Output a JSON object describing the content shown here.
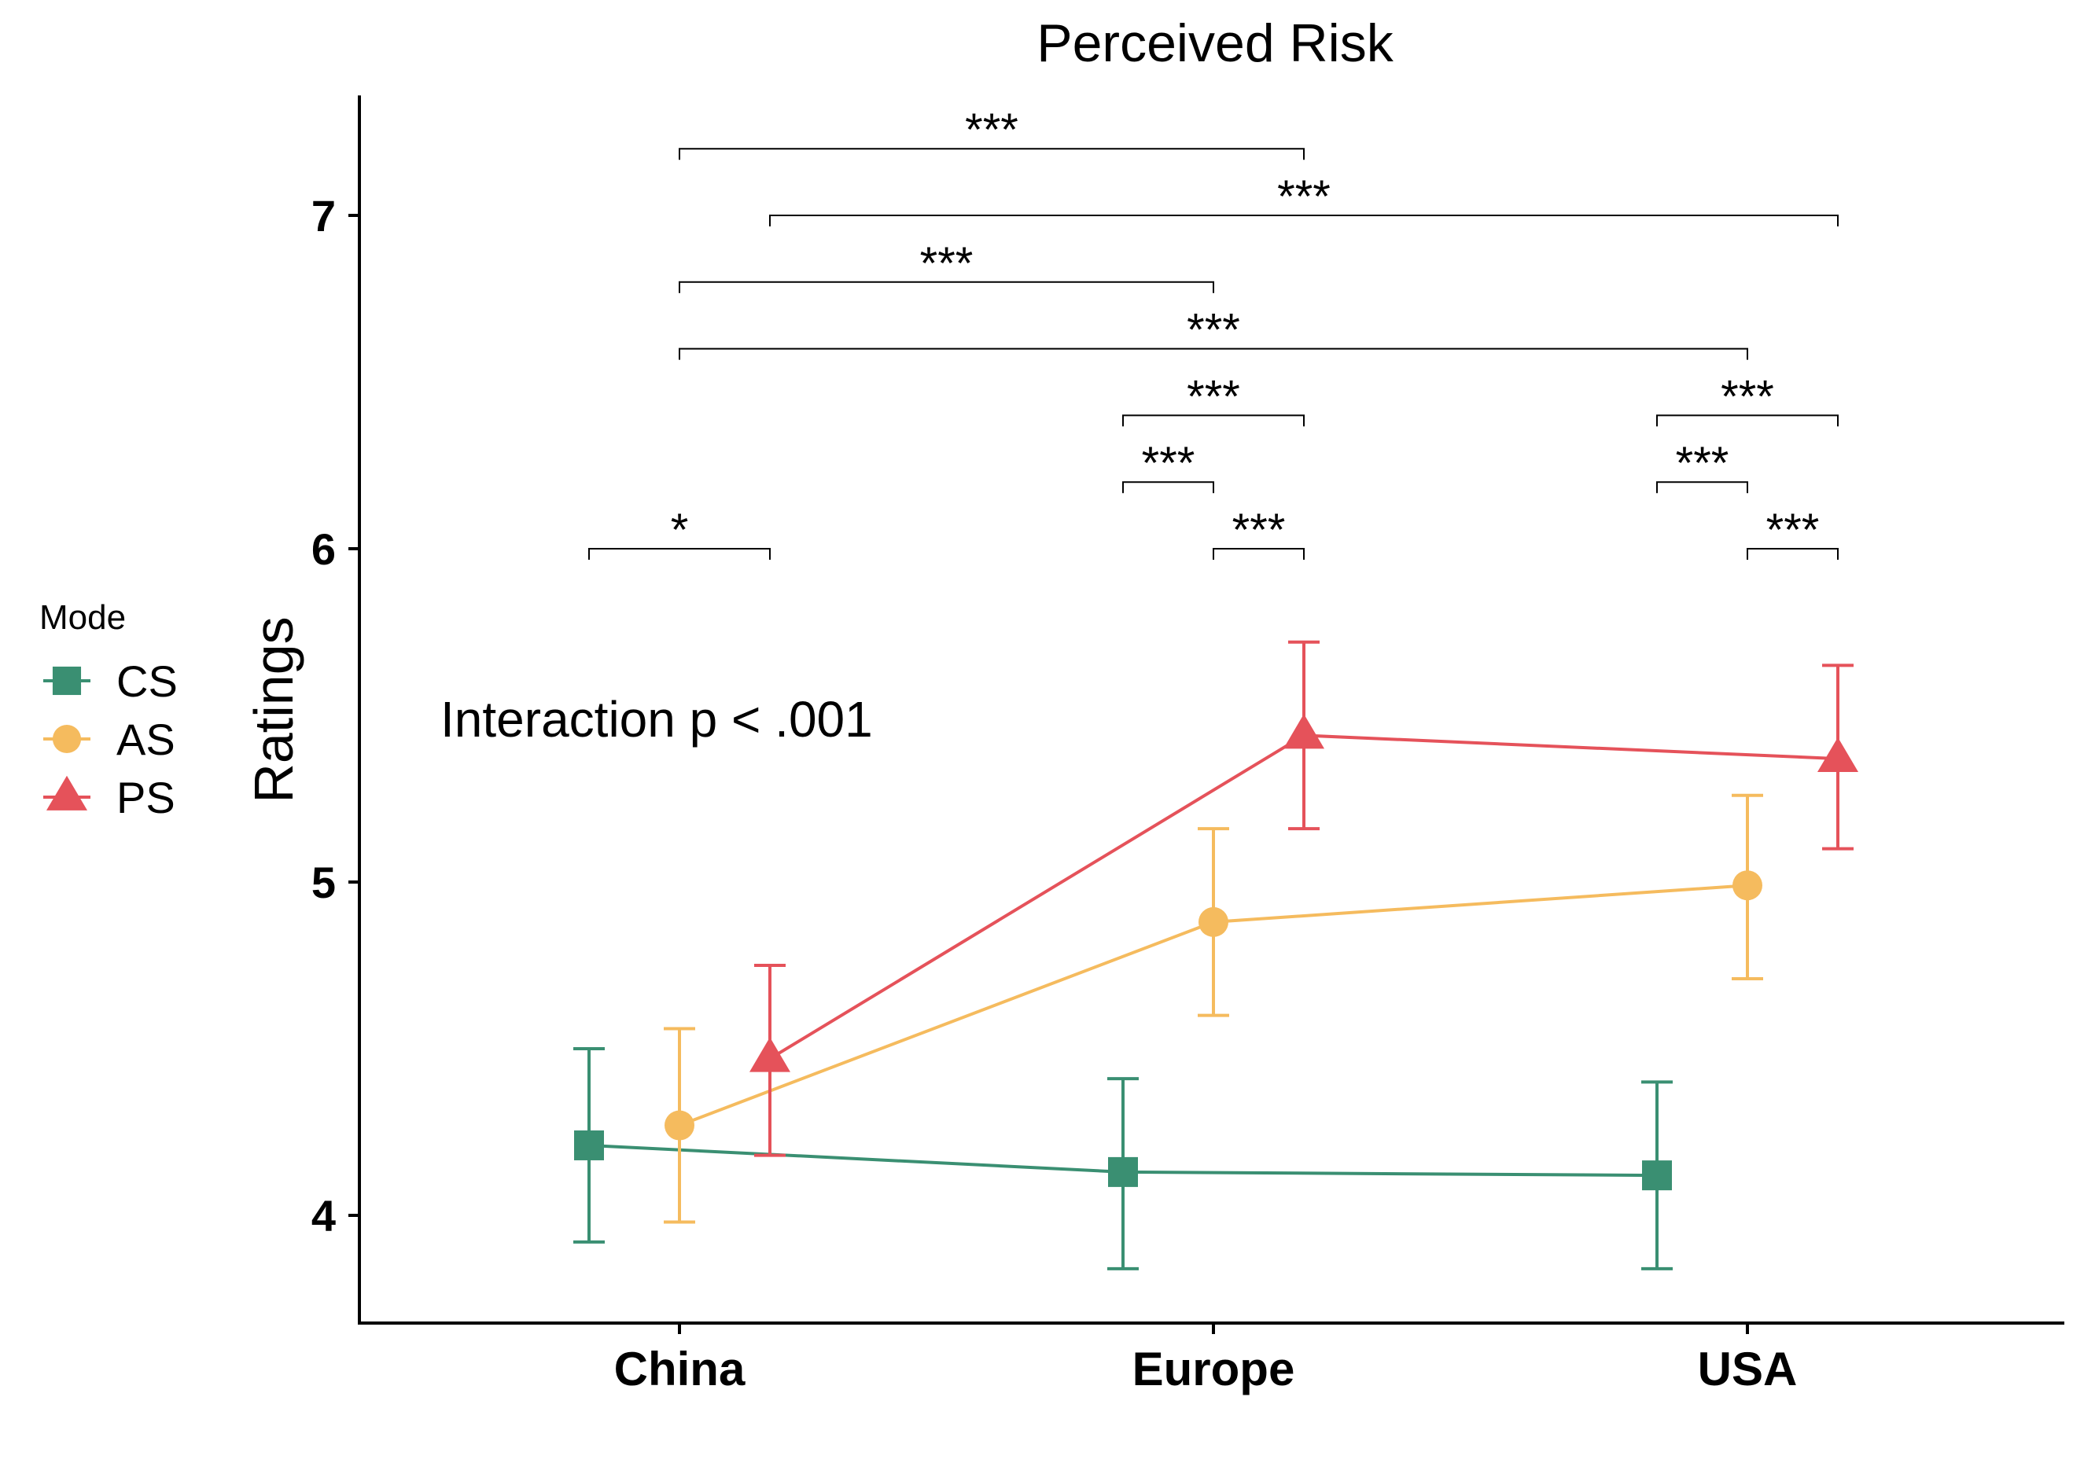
{
  "chart_data": {
    "type": "line",
    "title": "Perceived Risk",
    "xlabel": "",
    "ylabel": "Ratings",
    "categories": [
      "China",
      "Europe",
      "USA"
    ],
    "yticks": [
      4,
      5,
      6,
      7
    ],
    "ylim": [
      3.68,
      7.36
    ],
    "series": [
      {
        "name": "CS",
        "color": "#3a8f72",
        "shape": "square",
        "values": [
          4.21,
          4.13,
          4.12
        ],
        "lower": [
          3.92,
          3.84,
          3.84
        ],
        "upper": [
          4.5,
          4.41,
          4.4
        ]
      },
      {
        "name": "AS",
        "color": "#f5bb5e",
        "shape": "circle",
        "values": [
          4.27,
          4.88,
          4.99
        ],
        "lower": [
          3.98,
          4.6,
          4.71
        ],
        "upper": [
          4.56,
          5.16,
          5.26
        ]
      },
      {
        "name": "PS",
        "color": "#e5525a",
        "shape": "triangle",
        "values": [
          4.47,
          5.44,
          5.37
        ],
        "lower": [
          4.18,
          5.16,
          5.1
        ],
        "upper": [
          4.75,
          5.72,
          5.65
        ]
      }
    ],
    "legend": {
      "title": "Mode",
      "position": "left"
    },
    "annotation": "Interaction p < .001",
    "significance": [
      {
        "from_cat": 0,
        "from_series": 1,
        "to_cat": 1,
        "to_series": 2,
        "y": 7.2,
        "label": "***"
      },
      {
        "from_cat": 0,
        "from_series": 2,
        "to_cat": 2,
        "to_series": 2,
        "y": 7.0,
        "label": "***"
      },
      {
        "from_cat": 0,
        "from_series": 1,
        "to_cat": 1,
        "to_series": 1,
        "y": 6.8,
        "label": "***"
      },
      {
        "from_cat": 0,
        "from_series": 1,
        "to_cat": 2,
        "to_series": 1,
        "y": 6.6,
        "label": "***"
      },
      {
        "from_cat": 1,
        "from_series": 0,
        "to_cat": 1,
        "to_series": 2,
        "y": 6.4,
        "label": "***"
      },
      {
        "from_cat": 2,
        "from_series": 0,
        "to_cat": 2,
        "to_series": 2,
        "y": 6.4,
        "label": "***"
      },
      {
        "from_cat": 1,
        "from_series": 0,
        "to_cat": 1,
        "to_series": 1,
        "y": 6.2,
        "label": "***"
      },
      {
        "from_cat": 2,
        "from_series": 0,
        "to_cat": 2,
        "to_series": 1,
        "y": 6.2,
        "label": "***"
      },
      {
        "from_cat": 0,
        "from_series": 0,
        "to_cat": 0,
        "to_series": 2,
        "y": 6.0,
        "label": "*"
      },
      {
        "from_cat": 1,
        "from_series": 1,
        "to_cat": 1,
        "to_series": 2,
        "y": 6.0,
        "label": "***"
      },
      {
        "from_cat": 2,
        "from_series": 1,
        "to_cat": 2,
        "to_series": 2,
        "y": 6.0,
        "label": "***"
      }
    ]
  }
}
